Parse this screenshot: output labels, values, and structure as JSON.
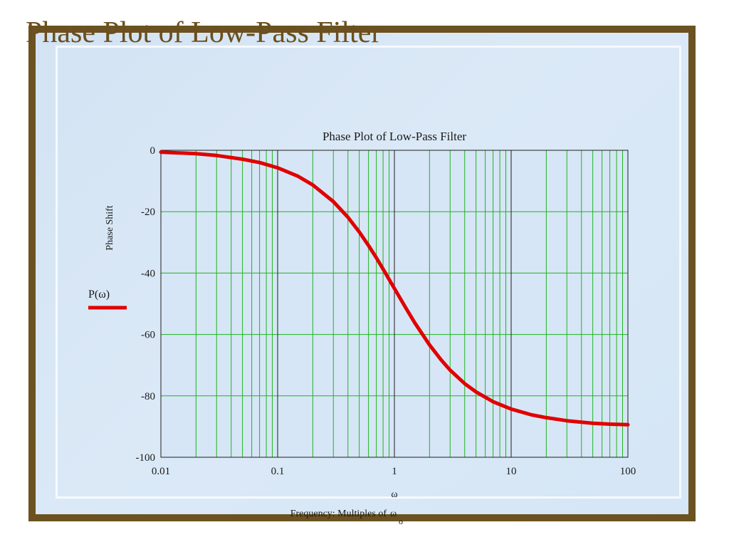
{
  "slide": {
    "title": "Phase Plot of Low-Pass Filter",
    "colors": {
      "frame": "#6b5220",
      "title": "#6b4f1c",
      "background": "#d6e6f6"
    }
  },
  "chart_data": {
    "type": "line",
    "title": "Phase Plot of Low-Pass Filter",
    "xlabel_symbol": "ω",
    "xlabel": "Frequency: Multiples of",
    "xlabel_unit_symbol": "ω",
    "xlabel_unit_subscript": "o",
    "ylabel": "Phase Shift",
    "x_scale": "log",
    "xlim": [
      0.01,
      100
    ],
    "ylim": [
      -100,
      0
    ],
    "x_ticks": [
      0.01,
      0.1,
      1,
      10,
      100
    ],
    "x_tick_labels": [
      "0.01",
      "0.1",
      "1",
      "10",
      "100"
    ],
    "y_ticks": [
      0,
      -20,
      -40,
      -60,
      -80,
      -100
    ],
    "y_tick_labels": [
      "0",
      "-20",
      "-40",
      "-60",
      "-80",
      "-100"
    ],
    "grid": true,
    "legend": {
      "placement": "left",
      "entries": [
        {
          "label": "P(ω)",
          "color": "#e00000"
        }
      ]
    },
    "series": [
      {
        "name": "P(ω)",
        "color": "#e00000",
        "x": [
          0.01,
          0.02,
          0.03,
          0.05,
          0.07,
          0.1,
          0.15,
          0.2,
          0.3,
          0.4,
          0.5,
          0.6,
          0.7,
          0.8,
          1,
          1.25,
          1.5,
          2,
          2.5,
          3,
          4,
          5,
          7,
          10,
          15,
          20,
          30,
          50,
          70,
          100
        ],
        "y": [
          -0.6,
          -1.1,
          -1.7,
          -2.9,
          -4.0,
          -5.7,
          -8.5,
          -11.3,
          -16.7,
          -21.8,
          -26.6,
          -31.0,
          -35.0,
          -38.7,
          -45.0,
          -51.3,
          -56.3,
          -63.4,
          -68.2,
          -71.6,
          -76.0,
          -78.7,
          -81.9,
          -84.3,
          -86.2,
          -87.1,
          -88.1,
          -88.9,
          -89.2,
          -89.4
        ]
      }
    ]
  }
}
